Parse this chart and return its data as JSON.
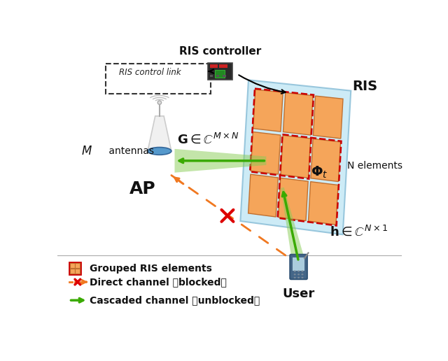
{
  "bg_color": "#ffffff",
  "ris_panel_color": "#c5e8f5",
  "ris_panel_edge": "#8bbfd8",
  "ris_elem_color": "#f5a55a",
  "ris_elem_edge": "#c07030",
  "group_border_color": "#cc0000",
  "orange_color": "#f07820",
  "green_color": "#3aaa00",
  "label_controller": "RIS controller",
  "label_control_link": "RIS control link",
  "label_RIS": "RIS",
  "label_M": "M  antennas",
  "label_AP": "AP",
  "label_N": "N elements",
  "label_user": "User",
  "legend_element": "Grouped RIS elements",
  "legend_direct": "Direct channel （blocked）",
  "legend_cascaded": "Cascaded channel （unblocked）"
}
